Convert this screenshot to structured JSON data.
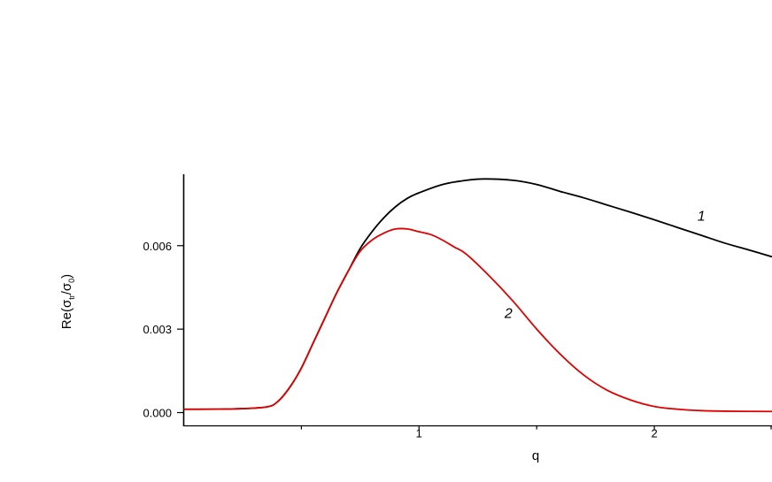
{
  "chart_data": {
    "type": "line",
    "xlabel": "q",
    "ylabel": "Re(σtr/σ0)",
    "ylabel_parts": {
      "prefix": "Re(",
      "s1": "σ",
      "sub1": "tr",
      "slash": "/",
      "s2": "σ",
      "sub2": "0",
      "suffix": ")"
    },
    "xlim": [
      0,
      2.5
    ],
    "ylim": [
      -0.0002,
      0.0086
    ],
    "x_ticks_major": [
      1,
      2
    ],
    "x_ticks_minor": [
      0.5,
      1.5,
      2.5
    ],
    "y_ticks": [
      {
        "value": 0.0,
        "label": "0.000"
      },
      {
        "value": 0.003,
        "label": "0.003"
      },
      {
        "value": 0.006,
        "label": "0.006"
      }
    ],
    "grid": false,
    "series": [
      {
        "name": "1",
        "color": "#000000",
        "x": [
          0.0,
          0.2,
          0.35,
          0.4,
          0.45,
          0.5,
          0.55,
          0.6,
          0.65,
          0.7,
          0.75,
          0.8,
          0.85,
          0.9,
          0.95,
          1.0,
          1.1,
          1.2,
          1.28,
          1.4,
          1.5,
          1.6,
          1.7,
          1.8,
          1.9,
          2.0,
          2.1,
          2.2,
          2.3,
          2.4,
          2.5
        ],
        "y": [
          0.00012,
          0.00013,
          0.0002,
          0.0004,
          0.0009,
          0.0016,
          0.0025,
          0.0034,
          0.0043,
          0.0051,
          0.0059,
          0.0065,
          0.007,
          0.0074,
          0.0077,
          0.0079,
          0.0082,
          0.00835,
          0.0084,
          0.00835,
          0.0082,
          0.00795,
          0.00772,
          0.00746,
          0.0072,
          0.00693,
          0.00665,
          0.00637,
          0.00609,
          0.00585,
          0.0056
        ]
      },
      {
        "name": "2",
        "color": "#e00000",
        "x": [
          0.0,
          0.2,
          0.35,
          0.4,
          0.45,
          0.5,
          0.55,
          0.6,
          0.65,
          0.7,
          0.75,
          0.8,
          0.85,
          0.9,
          0.95,
          1.0,
          1.05,
          1.1,
          1.15,
          1.2,
          1.3,
          1.4,
          1.5,
          1.6,
          1.7,
          1.8,
          1.9,
          2.0,
          2.1,
          2.2,
          2.3,
          2.5
        ],
        "y": [
          0.00012,
          0.00013,
          0.0002,
          0.0004,
          0.0009,
          0.0016,
          0.0025,
          0.0034,
          0.0043,
          0.0051,
          0.0058,
          0.0062,
          0.00645,
          0.0066,
          0.0066,
          0.0065,
          0.0064,
          0.0062,
          0.00595,
          0.0057,
          0.0049,
          0.004,
          0.003,
          0.0021,
          0.00135,
          0.0008,
          0.00045,
          0.00022,
          0.00012,
          7e-05,
          5e-05,
          4e-05
        ]
      }
    ],
    "annotations": [
      {
        "text": "1",
        "x": 2.2,
        "y": 0.0069
      },
      {
        "text": "2",
        "x": 1.38,
        "y": 0.0034
      }
    ]
  }
}
